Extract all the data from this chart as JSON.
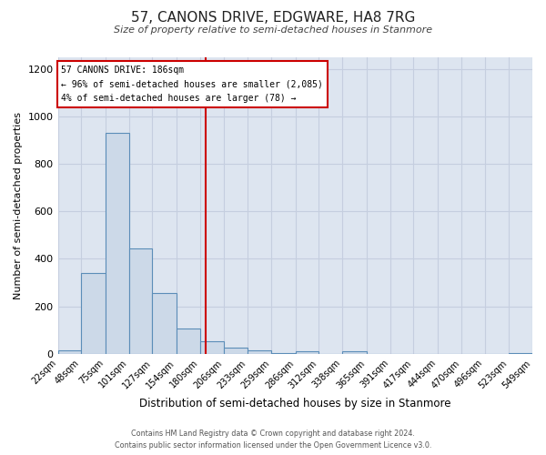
{
  "title": "57, CANONS DRIVE, EDGWARE, HA8 7RG",
  "subtitle": "Size of property relative to semi-detached houses in Stanmore",
  "xlabel": "Distribution of semi-detached houses by size in Stanmore",
  "ylabel": "Number of semi-detached properties",
  "bin_edges": [
    22,
    48,
    75,
    101,
    127,
    154,
    180,
    206,
    233,
    259,
    286,
    312,
    338,
    365,
    391,
    417,
    444,
    470,
    496,
    523,
    549
  ],
  "counts": [
    15,
    340,
    930,
    445,
    255,
    105,
    55,
    25,
    15,
    5,
    10,
    0,
    10,
    0,
    0,
    0,
    0,
    0,
    0,
    5
  ],
  "bar_facecolor": "#ccd9e8",
  "bar_edgecolor": "#5b8db8",
  "reference_line_x": 186,
  "reference_line_color": "#cc0000",
  "annotation_title": "57 CANONS DRIVE: 186sqm",
  "annotation_line1": "← 96% of semi-detached houses are smaller (2,085)",
  "annotation_line2": "4% of semi-detached houses are larger (78) →",
  "annotation_box_edgecolor": "#cc0000",
  "ylim": [
    0,
    1250
  ],
  "yticks": [
    0,
    200,
    400,
    600,
    800,
    1000,
    1200
  ],
  "background_color": "#dde5f0",
  "grid_color": "#c5cedf",
  "footer_line1": "Contains HM Land Registry data © Crown copyright and database right 2024.",
  "footer_line2": "Contains public sector information licensed under the Open Government Licence v3.0."
}
